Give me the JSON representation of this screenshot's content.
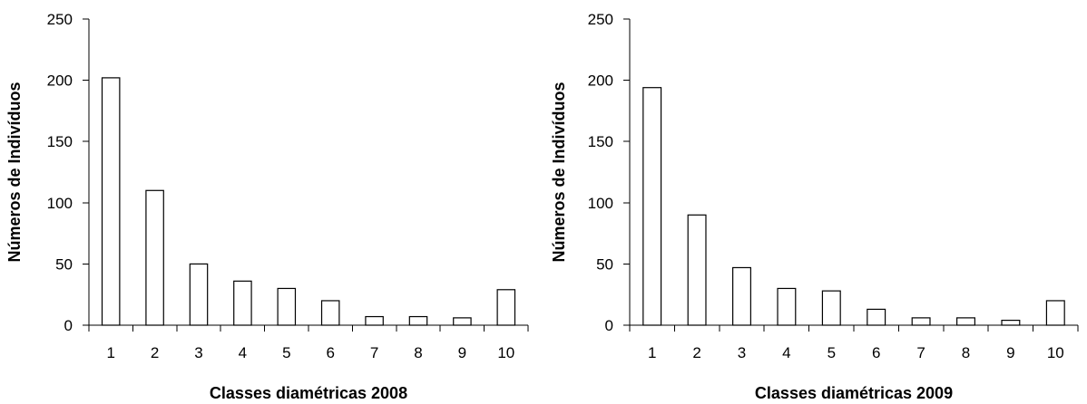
{
  "chart_data": [
    {
      "type": "bar",
      "title": "",
      "xlabel": "Classes diamétricas 2008",
      "ylabel": "Números de Indivíduos",
      "categories": [
        "1",
        "2",
        "3",
        "4",
        "5",
        "6",
        "7",
        "8",
        "9",
        "10"
      ],
      "series": [
        {
          "values": [
            202,
            110,
            50,
            36,
            30,
            20,
            7,
            7,
            6,
            29
          ]
        }
      ],
      "ylim": [
        0,
        250
      ],
      "yticks": [
        "0",
        "50",
        "100",
        "150",
        "200",
        "250"
      ],
      "grid": false,
      "legend": false,
      "bar_fill": "#ffffff",
      "bar_stroke": "#000000"
    },
    {
      "type": "bar",
      "title": "",
      "xlabel": "Classes diamétricas 2009",
      "ylabel": "Números de Indivíduos",
      "categories": [
        "1",
        "2",
        "3",
        "4",
        "5",
        "6",
        "7",
        "8",
        "9",
        "10"
      ],
      "series": [
        {
          "values": [
            194,
            90,
            47,
            30,
            28,
            13,
            6,
            6,
            4,
            20
          ]
        }
      ],
      "ylim": [
        0,
        250
      ],
      "yticks": [
        "0",
        "50",
        "100",
        "150",
        "200",
        "250"
      ],
      "grid": false,
      "legend": false,
      "bar_fill": "#ffffff",
      "bar_stroke": "#000000"
    }
  ]
}
